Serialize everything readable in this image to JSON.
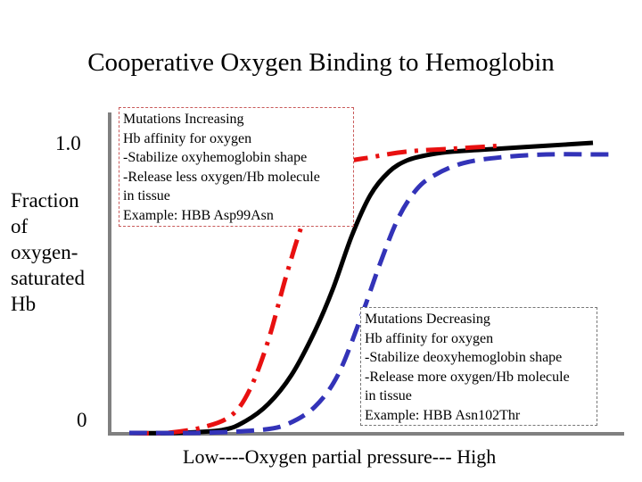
{
  "title": "Cooperative Oxygen Binding to Hemoglobin",
  "colors": {
    "wild_type": "#000000",
    "increased_affinity": "#e81010",
    "decreased_affinity": "#3333b8",
    "axis": "#808080"
  },
  "chart_data": {
    "type": "line",
    "title": "Cooperative Oxygen Binding to Hemoglobin",
    "xlabel": "Low----Oxygen partial pressure--- High",
    "ylabel": "Fraction of oxygen-saturated Hb",
    "y_ticks": [
      "1.0",
      "0"
    ],
    "ylim": [
      0,
      1
    ],
    "xlim": [
      0,
      1
    ],
    "series": [
      {
        "style": "solid",
        "color": "#000000",
        "x": [
          0.0,
          0.1,
          0.2,
          0.25,
          0.3,
          0.35,
          0.4,
          0.44,
          0.48,
          0.52,
          0.56,
          0.6,
          0.65,
          0.7,
          0.8,
          0.9,
          1.0
        ],
        "y": [
          0.0,
          0.0,
          0.01,
          0.04,
          0.1,
          0.2,
          0.35,
          0.5,
          0.68,
          0.82,
          0.9,
          0.94,
          0.96,
          0.97,
          0.98,
          0.99,
          1.0
        ]
      },
      {
        "style": "dash-dot",
        "color": "#e81010",
        "x": [
          0.0,
          0.08,
          0.16,
          0.22,
          0.26,
          0.3,
          0.34,
          0.38,
          0.42,
          0.46,
          0.52,
          0.6,
          0.7,
          0.8
        ],
        "y": [
          0.0,
          0.0,
          0.02,
          0.06,
          0.15,
          0.32,
          0.55,
          0.75,
          0.88,
          0.93,
          0.95,
          0.97,
          0.98,
          0.99
        ]
      },
      {
        "style": "dashed",
        "color": "#3333b8",
        "x": [
          0.0,
          0.15,
          0.28,
          0.34,
          0.4,
          0.45,
          0.5,
          0.54,
          0.58,
          0.62,
          0.66,
          0.72,
          0.8,
          0.9,
          1.0,
          1.05
        ],
        "y": [
          0.0,
          0.0,
          0.01,
          0.03,
          0.09,
          0.2,
          0.4,
          0.58,
          0.74,
          0.84,
          0.89,
          0.93,
          0.95,
          0.96,
          0.96,
          0.96
        ]
      }
    ],
    "annotations": [
      {
        "id": "increase",
        "lines": [
          "Mutations Increasing",
          "Hb affinity for oxygen",
          "-Stabilize oxyhemoglobin shape",
          "-Release less oxygen/Hb molecule",
          "in tissue",
          "Example: HBB Asp99Asn"
        ]
      },
      {
        "id": "decrease",
        "lines": [
          "Mutations Decreasing",
          "Hb affinity for oxygen",
          "-Stabilize deoxyhemoglobin shape",
          "-Release more oxygen/Hb molecule",
          "in tissue",
          "Example: HBB Asn102Thr"
        ]
      }
    ]
  }
}
